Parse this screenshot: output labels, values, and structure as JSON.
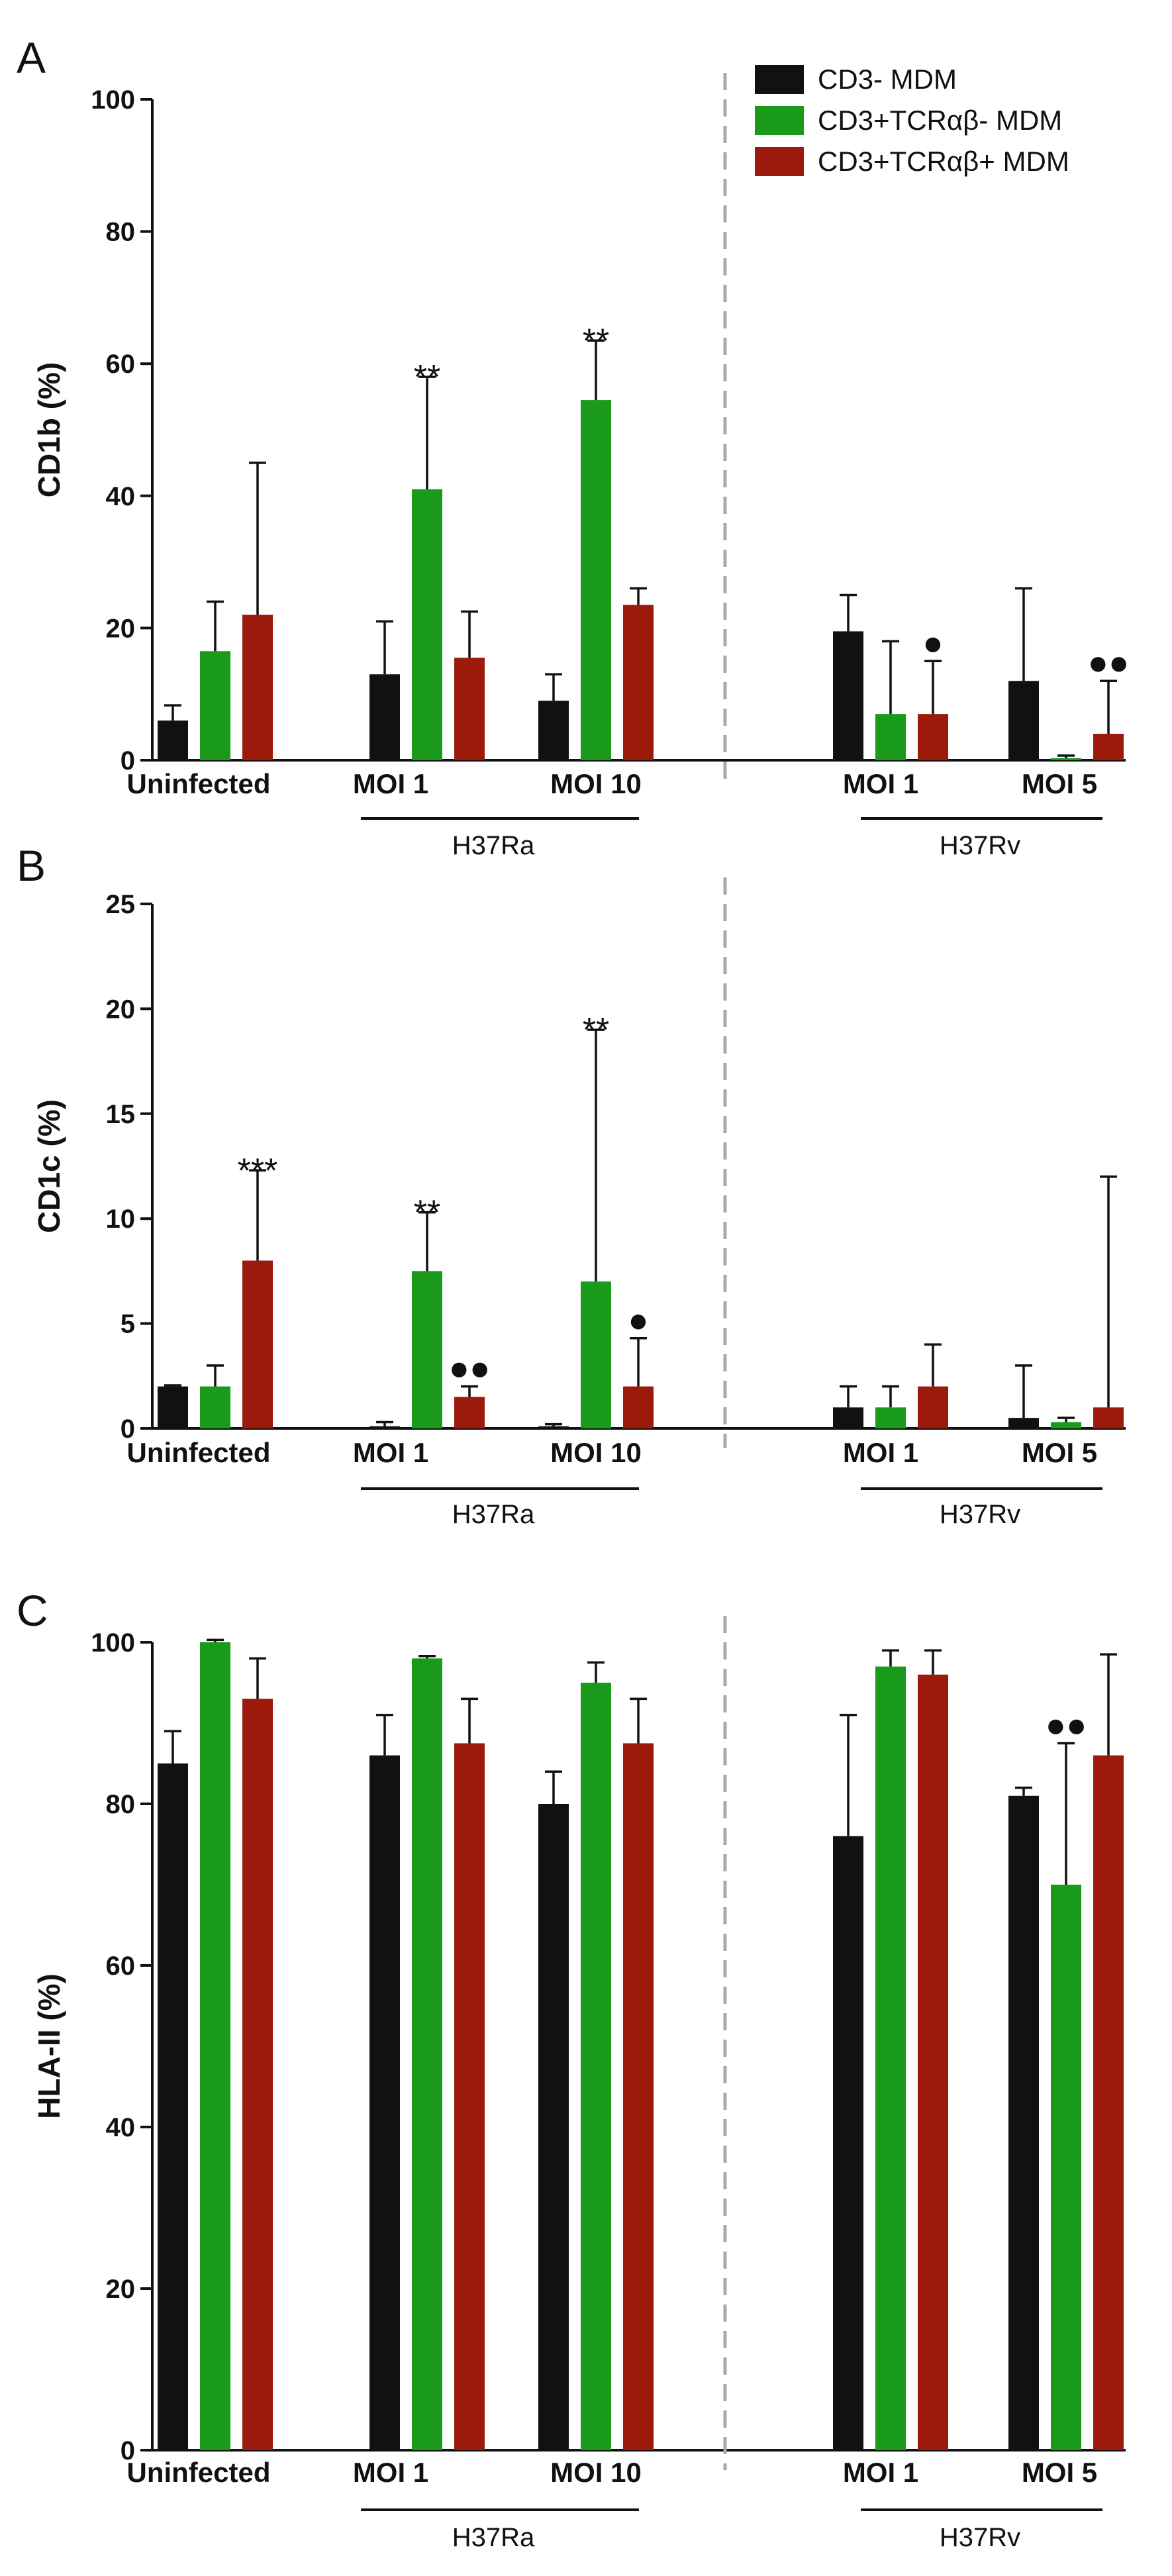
{
  "legend": [
    {
      "name": "CD3- MDM",
      "color": "#111111"
    },
    {
      "name": "CD3+TCRαβ- MDM",
      "color": "#1a9a1a"
    },
    {
      "name": "CD3+TCRαβ+ MDM",
      "color": "#9b1a0c"
    }
  ],
  "chart_data": [
    {
      "type": "bar",
      "panel": "A",
      "ylabel": "CD1b (%)",
      "ylim": [
        0,
        100
      ],
      "yticks": [
        0,
        20,
        40,
        60,
        80,
        100
      ],
      "categories": [
        "Uninfected",
        "MOI 1",
        "MOI 10",
        "MOI 1",
        "MOI 5"
      ],
      "groups": [
        {
          "label": "H37Ra",
          "categories": [
            1,
            2
          ]
        },
        {
          "label": "H37Rv",
          "categories": [
            3,
            4
          ]
        }
      ],
      "series": [
        {
          "name": "CD3- MDM",
          "values": [
            6,
            13,
            9,
            19.5,
            12
          ],
          "errors": [
            2.3,
            8,
            4,
            5.5,
            14
          ]
        },
        {
          "name": "CD3+TCRαβ- MDM",
          "values": [
            16.5,
            41,
            54.5,
            7,
            0.3
          ],
          "errors": [
            7.5,
            17,
            9,
            11,
            0.4
          ]
        },
        {
          "name": "CD3+TCRαβ+ MDM",
          "values": [
            22,
            15.5,
            23.5,
            7,
            4
          ],
          "errors": [
            23,
            7,
            2.5,
            8,
            8
          ]
        }
      ],
      "annotations": [
        {
          "category": 1,
          "series": 1,
          "text": "**"
        },
        {
          "category": 2,
          "series": 1,
          "text": "**"
        },
        {
          "category": 3,
          "series": 2,
          "text": "●"
        },
        {
          "category": 4,
          "series": 2,
          "text": "●●"
        }
      ]
    },
    {
      "type": "bar",
      "panel": "B",
      "ylabel": "CD1c (%)",
      "ylim": [
        0,
        25
      ],
      "yticks": [
        0,
        5,
        10,
        15,
        20,
        25
      ],
      "categories": [
        "Uninfected",
        "MOI 1",
        "MOI 10",
        "MOI 1",
        "MOI 5"
      ],
      "groups": [
        {
          "label": "H37Ra",
          "categories": [
            1,
            2
          ]
        },
        {
          "label": "H37Rv",
          "categories": [
            3,
            4
          ]
        }
      ],
      "series": [
        {
          "name": "CD3- MDM",
          "values": [
            2,
            0.1,
            0.1,
            1,
            0.5
          ],
          "errors": [
            0.05,
            0.2,
            0.1,
            1,
            2.5
          ]
        },
        {
          "name": "CD3+TCRαβ- MDM",
          "values": [
            2,
            7.5,
            7,
            1,
            0.3
          ],
          "errors": [
            1,
            2.8,
            12,
            1,
            0.2
          ]
        },
        {
          "name": "CD3+TCRαβ+ MDM",
          "values": [
            8,
            1.5,
            2,
            2,
            1
          ],
          "errors": [
            4.3,
            0.5,
            2.3,
            2,
            11
          ]
        }
      ],
      "annotations": [
        {
          "category": 0,
          "series": 2,
          "text": "***"
        },
        {
          "category": 1,
          "series": 1,
          "text": "**"
        },
        {
          "category": 1,
          "series": 2,
          "text": "●●"
        },
        {
          "category": 2,
          "series": 1,
          "text": "**"
        },
        {
          "category": 2,
          "series": 2,
          "text": "●"
        }
      ]
    },
    {
      "type": "bar",
      "panel": "C",
      "ylabel": "HLA-II (%)",
      "ylim": [
        0,
        100
      ],
      "yticks": [
        0,
        20,
        40,
        60,
        80,
        100
      ],
      "categories": [
        "Uninfected",
        "MOI 1",
        "MOI 10",
        "MOI 1",
        "MOI 5"
      ],
      "groups": [
        {
          "label": "H37Ra",
          "categories": [
            1,
            2
          ]
        },
        {
          "label": "H37Rv",
          "categories": [
            3,
            4
          ]
        }
      ],
      "series": [
        {
          "name": "CD3- MDM",
          "values": [
            85,
            86,
            80,
            76,
            81
          ],
          "errors": [
            4,
            5,
            4,
            15,
            1
          ]
        },
        {
          "name": "CD3+TCRαβ- MDM",
          "values": [
            100,
            98,
            95,
            97,
            70
          ],
          "errors": [
            0.3,
            0.3,
            2.5,
            2,
            17.5
          ]
        },
        {
          "name": "CD3+TCRαβ+ MDM",
          "values": [
            93,
            87.5,
            87.5,
            96,
            86
          ],
          "errors": [
            5,
            5.5,
            5.5,
            3,
            12.5
          ]
        }
      ],
      "annotations": [
        {
          "category": 4,
          "series": 1,
          "text": "●●"
        }
      ]
    }
  ]
}
